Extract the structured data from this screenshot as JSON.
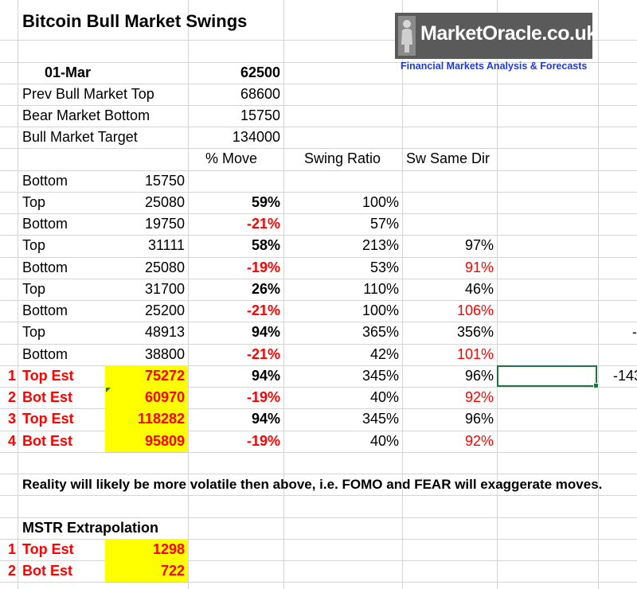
{
  "title": "Bitcoin Bull Market Swings",
  "logo": {
    "brand": "MarketOracle.co.uk",
    "tagline": "Financial Markets Analysis & Forecasts"
  },
  "summary": {
    "date_label": "01-Mar",
    "date_value": "62500",
    "rows": [
      {
        "label": "Prev Bull Market Top",
        "value": "68600"
      },
      {
        "label": "Bear Market Bottom",
        "value": "15750"
      },
      {
        "label": "Bull Market Target",
        "value": "134000"
      }
    ]
  },
  "table": {
    "headers": {
      "move": "% Move",
      "ratio": "Swing Ratio",
      "same_dir": "Sw Same Dir"
    },
    "rows": [
      {
        "label": "Bottom",
        "value": "15750",
        "move": "",
        "ratio": "",
        "same": ""
      },
      {
        "label": "Top",
        "value": "25080",
        "move": "59%",
        "ratio": "100%",
        "same": ""
      },
      {
        "label": "Bottom",
        "value": "19750",
        "move": "-21%",
        "ratio": "57%",
        "same": ""
      },
      {
        "label": "Top",
        "value": "31111",
        "move": "58%",
        "ratio": "213%",
        "same": "97%"
      },
      {
        "label": "Bottom",
        "value": "25080",
        "move": "-19%",
        "ratio": "53%",
        "same": "91%"
      },
      {
        "label": "Top",
        "value": "31700",
        "move": "26%",
        "ratio": "110%",
        "same": "46%"
      },
      {
        "label": "Bottom",
        "value": "25200",
        "move": "-21%",
        "ratio": "100%",
        "same": "106%"
      },
      {
        "label": "Top",
        "value": "48913",
        "move": "94%",
        "ratio": "365%",
        "same": "356%",
        "extra": "-"
      },
      {
        "label": "Bottom",
        "value": "38800",
        "move": "-21%",
        "ratio": "42%",
        "same": "101%"
      }
    ],
    "estimates": [
      {
        "num": "1",
        "label": "Top Est",
        "value": "75272",
        "move": "94%",
        "ratio": "345%",
        "same": "96%",
        "extra": "-143"
      },
      {
        "num": "2",
        "label": "Bot Est",
        "value": "60970",
        "move": "-19%",
        "ratio": "40%",
        "same": "92%"
      },
      {
        "num": "3",
        "label": "Top Est",
        "value": "118282",
        "move": "94%",
        "ratio": "345%",
        "same": "96%"
      },
      {
        "num": "4",
        "label": "Bot Est",
        "value": "95809",
        "move": "-19%",
        "ratio": "40%",
        "same": "92%"
      }
    ]
  },
  "note": "Reality will likely be more volatile then above, i.e. FOMO and FEAR will exaggerate moves.",
  "mstr": {
    "title": "MSTR Extrapolation",
    "rows": [
      {
        "num": "1",
        "label": "Top Est",
        "value": "1298"
      },
      {
        "num": "2",
        "label": "Bot Est",
        "value": "722"
      }
    ]
  },
  "colors": {
    "highlight": "#ffff00",
    "negative": "#ff0000",
    "selection": "#217346",
    "logo_bg": "#5a5a5a",
    "tagline": "#1f3bd6"
  }
}
